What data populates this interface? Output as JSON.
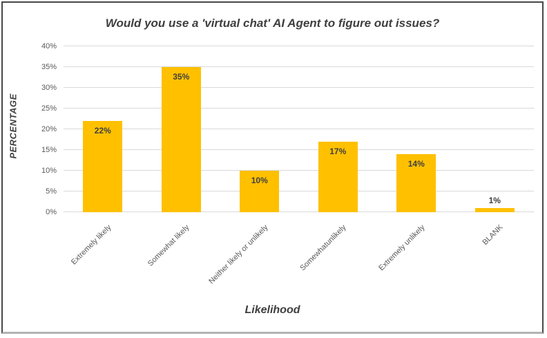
{
  "chart_data": {
    "type": "bar",
    "title": "Would you use a 'virtual chat' AI Agent to figure out issues?",
    "xlabel": "Likelihood",
    "ylabel": "PERCENTAGE",
    "categories": [
      "Extremely likely",
      "Somewhat likely",
      "Neither likely or unlikely",
      "Somewhatunlikely",
      "Extremely unlikely",
      "BLANK"
    ],
    "values": [
      22,
      35,
      10,
      17,
      14,
      1
    ],
    "data_labels": [
      "22%",
      "35%",
      "10%",
      "17%",
      "14%",
      "1%"
    ],
    "y_ticks": [
      "0%",
      "5%",
      "10%",
      "15%",
      "20%",
      "25%",
      "30%",
      "35%",
      "40%"
    ],
    "ylim": [
      0,
      40
    ],
    "grid": true,
    "legend": "none",
    "bar_color": "#FFC000",
    "data_label_color": "#3f3f3f",
    "title_color": "#3f3f3f",
    "axis_text_color": "#595959",
    "gridline_color": "#d9d9d9"
  }
}
